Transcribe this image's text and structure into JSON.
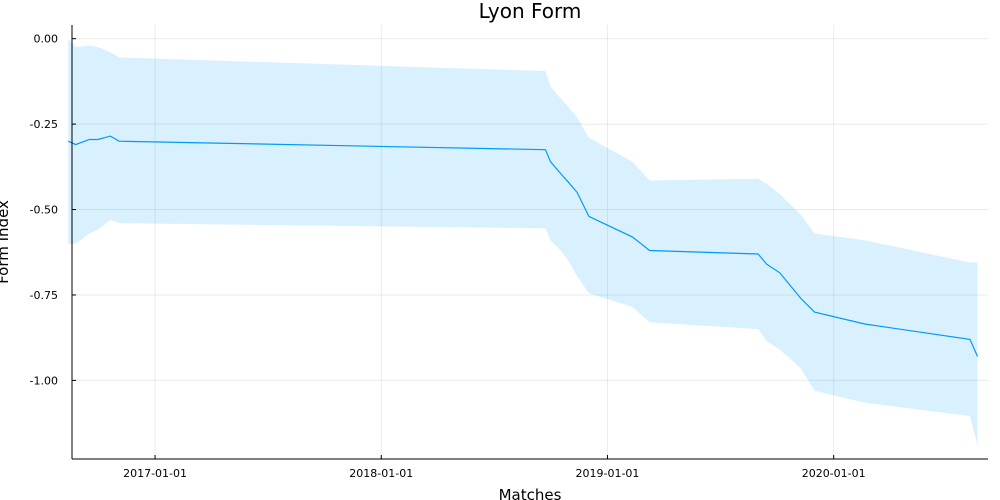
{
  "chart_data": {
    "type": "line",
    "title": "Lyon Form",
    "xlabel": "Matches",
    "ylabel": "Form Index",
    "x_tick_labels": [
      "2017-01-01",
      "2018-01-01",
      "2019-01-01",
      "2020-01-01"
    ],
    "y_tick_labels": [
      "0.00",
      "-0.25",
      "-0.50",
      "-0.75",
      "-1.00"
    ],
    "x_ticks": [
      "2017-01-01",
      "2018-01-01",
      "2019-01-01",
      "2020-01-01"
    ],
    "y_ticks": [
      0.0,
      -0.25,
      -0.5,
      -0.75,
      -1.0
    ],
    "xlim": [
      "2016-08-20",
      "2020-09-06"
    ],
    "ylim": [
      -1.23,
      0.04
    ],
    "grid": true,
    "legend": "none",
    "colors": {
      "line": "#009af9",
      "band": "#009af9"
    },
    "band_opacity": 0.15,
    "series": [
      {
        "x": [
          "2016-08-14",
          "2016-08-26",
          "2016-09-17",
          "2016-10-01",
          "2016-10-21",
          "2016-11-04",
          "2018-09-23",
          "2018-10-01",
          "2018-10-20",
          "2018-10-30",
          "2018-11-13",
          "2018-12-02",
          "2019-02-10",
          "2019-03-10",
          "2019-09-01",
          "2019-09-15",
          "2019-10-06",
          "2019-11-09",
          "2019-12-01",
          "2020-02-20",
          "2020-08-08",
          "2020-08-20"
        ],
        "y": [
          -0.3,
          -0.31,
          -0.295,
          -0.295,
          -0.285,
          -0.3,
          -0.325,
          -0.36,
          -0.4,
          -0.42,
          -0.45,
          -0.52,
          -0.58,
          -0.62,
          -0.63,
          -0.66,
          -0.685,
          -0.76,
          -0.8,
          -0.835,
          -0.88,
          -0.93
        ],
        "upper": [
          0.0,
          -0.025,
          -0.02,
          -0.025,
          -0.04,
          -0.055,
          -0.095,
          -0.14,
          -0.18,
          -0.2,
          -0.23,
          -0.29,
          -0.36,
          -0.415,
          -0.41,
          -0.425,
          -0.455,
          -0.515,
          -0.57,
          -0.59,
          -0.655,
          -0.655
        ],
        "lower": [
          -0.6,
          -0.6,
          -0.57,
          -0.56,
          -0.53,
          -0.54,
          -0.555,
          -0.59,
          -0.625,
          -0.65,
          -0.695,
          -0.745,
          -0.785,
          -0.83,
          -0.85,
          -0.885,
          -0.91,
          -0.965,
          -1.03,
          -1.065,
          -1.105,
          -1.19
        ]
      }
    ]
  }
}
